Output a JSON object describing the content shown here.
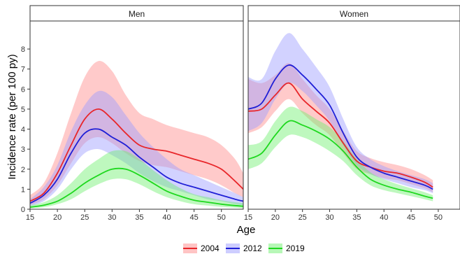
{
  "chart_data": {
    "type": "line",
    "xlabel": "Age",
    "ylabel": "Incidence rate (per 100 py)",
    "xlim": [
      15,
      54
    ],
    "ylim": [
      0,
      9.4
    ],
    "x_ticks": [
      15,
      20,
      25,
      30,
      35,
      40,
      45,
      50
    ],
    "y_ticks": [
      0,
      1,
      2,
      3,
      4,
      5,
      6,
      7,
      8
    ],
    "legend": {
      "position": "bottom",
      "entries": [
        "2004",
        "2012",
        "2019"
      ]
    },
    "colors": {
      "2004": "#e8262a",
      "2012": "#1f1fd6",
      "2019": "#1ed81e"
    },
    "band_colors": {
      "2004": "#ff8a8a",
      "2012": "#9c9cff",
      "2019": "#6ff06f"
    },
    "panels": [
      {
        "title": "Men",
        "series": [
          {
            "name": "2004",
            "x": [
              15,
              17.5,
              20,
              22.5,
              25,
              27.5,
              30,
              32.5,
              35,
              37.5,
              40,
              42.5,
              45,
              47.5,
              50,
              52.5,
              54
            ],
            "y": [
              0.4,
              0.8,
              1.8,
              3.2,
              4.5,
              5.0,
              4.5,
              3.8,
              3.2,
              3.0,
              2.9,
              2.7,
              2.5,
              2.3,
              2.0,
              1.4,
              1.0
            ],
            "lower": [
              0.2,
              0.5,
              1.2,
              2.3,
              3.3,
              3.6,
              3.3,
              2.8,
              2.4,
              2.2,
              2.1,
              1.9,
              1.7,
              1.5,
              1.2,
              0.8,
              0.6
            ],
            "upper": [
              0.7,
              1.3,
              2.8,
              4.8,
              6.6,
              7.4,
              6.9,
              5.7,
              4.8,
              4.5,
              4.2,
              4.0,
              3.8,
              3.6,
              3.2,
              2.5,
              1.8
            ]
          },
          {
            "name": "2012",
            "x": [
              15,
              17.5,
              20,
              22.5,
              25,
              27.5,
              30,
              32.5,
              35,
              37.5,
              40,
              42.5,
              45,
              47.5,
              50,
              52.5,
              54
            ],
            "y": [
              0.3,
              0.7,
              1.5,
              2.8,
              3.8,
              4.0,
              3.6,
              3.2,
              2.6,
              2.1,
              1.6,
              1.3,
              1.1,
              0.9,
              0.7,
              0.5,
              0.4
            ],
            "lower": [
              0.15,
              0.4,
              1.0,
              2.0,
              2.8,
              3.0,
              2.7,
              2.3,
              1.8,
              1.4,
              1.1,
              0.9,
              0.7,
              0.5,
              0.4,
              0.25,
              0.2
            ],
            "upper": [
              0.5,
              1.1,
              2.2,
              3.9,
              5.2,
              5.9,
              5.6,
              4.7,
              3.8,
              3.1,
              2.5,
              2.0,
              1.7,
              1.4,
              1.1,
              0.8,
              0.6
            ]
          },
          {
            "name": "2019",
            "x": [
              15,
              17.5,
              20,
              22.5,
              25,
              27.5,
              30,
              32.5,
              35,
              37.5,
              40,
              42.5,
              45,
              47.5,
              50,
              52.5,
              54
            ],
            "y": [
              0.1,
              0.2,
              0.4,
              0.8,
              1.3,
              1.7,
              2.0,
              2.0,
              1.7,
              1.3,
              0.9,
              0.65,
              0.45,
              0.35,
              0.25,
              0.18,
              0.15
            ],
            "lower": [
              0.05,
              0.1,
              0.25,
              0.5,
              0.9,
              1.25,
              1.5,
              1.5,
              1.25,
              0.9,
              0.6,
              0.4,
              0.25,
              0.18,
              0.12,
              0.08,
              0.05
            ],
            "upper": [
              0.2,
              0.35,
              0.7,
              1.3,
              2.0,
              2.5,
              2.9,
              2.9,
              2.5,
              1.95,
              1.45,
              1.05,
              0.75,
              0.6,
              0.45,
              0.35,
              0.3
            ]
          }
        ]
      },
      {
        "title": "Women",
        "series": [
          {
            "name": "2004",
            "x": [
              15,
              17.5,
              20,
              22.5,
              25,
              27.5,
              30,
              32.5,
              35,
              37.5,
              40,
              42.5,
              45,
              47.5,
              49
            ],
            "y": [
              4.9,
              5.0,
              5.7,
              6.3,
              5.5,
              4.9,
              4.3,
              3.3,
              2.4,
              2.1,
              1.9,
              1.8,
              1.6,
              1.35,
              1.1
            ],
            "lower": [
              3.8,
              4.1,
              4.9,
              5.5,
              4.8,
              4.2,
              3.7,
              2.8,
              2.0,
              1.75,
              1.55,
              1.45,
              1.25,
              1.05,
              0.85
            ],
            "upper": [
              6.5,
              6.3,
              6.7,
              7.3,
              6.5,
              5.7,
              5.0,
              3.9,
              2.9,
              2.55,
              2.35,
              2.2,
              2.0,
              1.7,
              1.45
            ]
          },
          {
            "name": "2012",
            "x": [
              15,
              17.5,
              20,
              22.5,
              25,
              27.5,
              30,
              32.5,
              35,
              37.5,
              40,
              42.5,
              45,
              47.5,
              49
            ],
            "y": [
              5.0,
              5.3,
              6.5,
              7.2,
              6.7,
              6.0,
              5.2,
              3.8,
              2.6,
              2.1,
              1.8,
              1.6,
              1.4,
              1.2,
              1.0
            ],
            "lower": [
              3.9,
              4.3,
              5.5,
              6.3,
              5.9,
              5.2,
              4.4,
              3.2,
              2.2,
              1.75,
              1.5,
              1.3,
              1.1,
              0.95,
              0.8
            ],
            "upper": [
              6.6,
              6.5,
              7.9,
              8.8,
              8.0,
              7.1,
              6.1,
              4.5,
              3.1,
              2.5,
              2.15,
              1.9,
              1.7,
              1.5,
              1.3
            ]
          },
          {
            "name": "2019",
            "x": [
              15,
              17.5,
              20,
              22.5,
              25,
              27.5,
              30,
              32.5,
              35,
              37.5,
              40,
              42.5,
              45,
              47.5,
              49
            ],
            "y": [
              2.5,
              2.8,
              3.7,
              4.4,
              4.2,
              3.9,
              3.5,
              2.9,
              2.1,
              1.5,
              1.2,
              1.0,
              0.85,
              0.65,
              0.55
            ],
            "lower": [
              2.0,
              2.3,
              3.1,
              3.7,
              3.6,
              3.3,
              2.9,
              2.4,
              1.7,
              1.2,
              0.95,
              0.8,
              0.65,
              0.5,
              0.4
            ],
            "upper": [
              3.2,
              3.4,
              4.4,
              5.1,
              4.9,
              4.5,
              4.1,
              3.4,
              2.5,
              1.85,
              1.5,
              1.25,
              1.05,
              0.85,
              0.7
            ]
          }
        ]
      }
    ]
  }
}
